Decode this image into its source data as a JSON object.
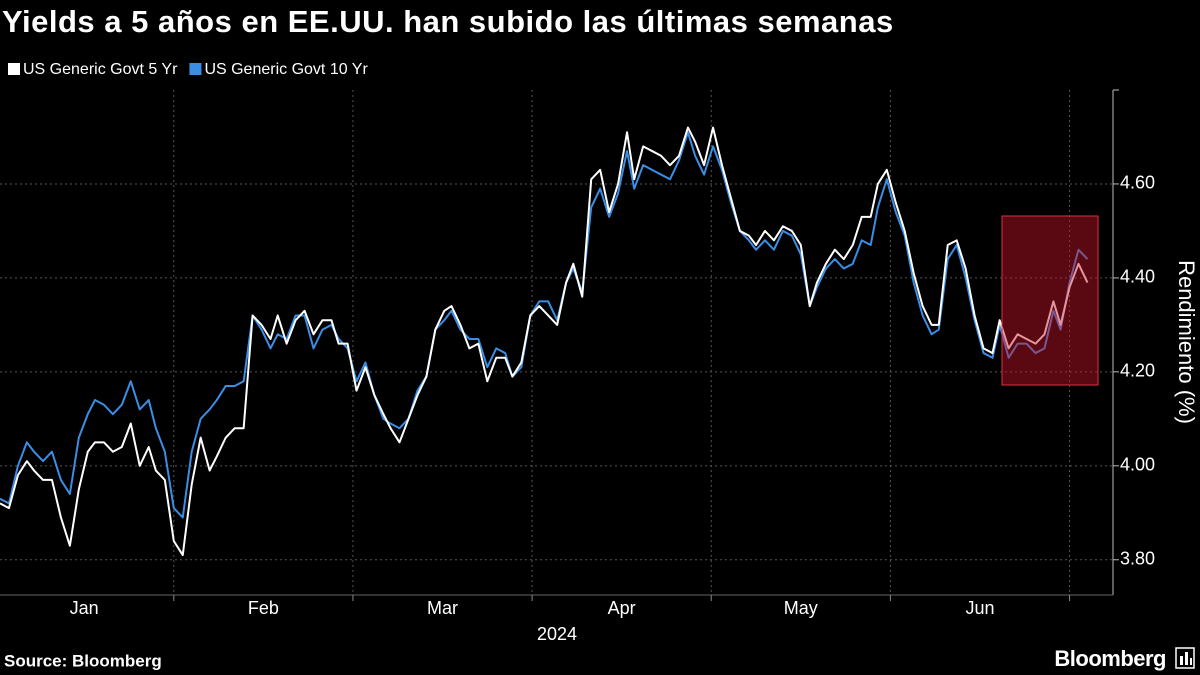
{
  "chart_data": {
    "type": "line",
    "title": "Yields a 5 años en EE.UU. han subido las últimas semanas",
    "y_label": "Rendimiento (%)",
    "x_label": "2024",
    "source": "Source: Bloomberg",
    "brand": "Bloomberg",
    "xlim": [
      1.03,
      7.17
    ],
    "ylim": [
      3.725,
      4.8
    ],
    "xticks": [
      {
        "value": 1.5,
        "label": "Jan"
      },
      {
        "value": 2.5,
        "label": "Feb"
      },
      {
        "value": 3.5,
        "label": "Mar"
      },
      {
        "value": 4.5,
        "label": "Apr"
      },
      {
        "value": 5.5,
        "label": "May"
      },
      {
        "value": 6.5,
        "label": "Jun"
      }
    ],
    "xgrid": [
      2,
      3,
      4,
      5,
      6,
      7
    ],
    "yticks": [
      {
        "value": 3.8,
        "label": "3.80"
      },
      {
        "value": 4.0,
        "label": "4.00"
      },
      {
        "value": 4.2,
        "label": "4.20"
      },
      {
        "value": 4.4,
        "label": "4.40"
      },
      {
        "value": 4.6,
        "label": "4.60"
      }
    ],
    "grid": true,
    "legend": "top-left",
    "x": [
      1.03,
      1.08,
      1.13,
      1.18,
      1.22,
      1.27,
      1.32,
      1.37,
      1.42,
      1.47,
      1.52,
      1.56,
      1.61,
      1.66,
      1.71,
      1.76,
      1.81,
      1.86,
      1.9,
      1.95,
      2.0,
      2.05,
      2.1,
      2.15,
      2.2,
      2.24,
      2.29,
      2.34,
      2.39,
      2.44,
      2.49,
      2.54,
      2.58,
      2.63,
      2.68,
      2.73,
      2.78,
      2.83,
      2.88,
      2.92,
      2.97,
      3.02,
      3.07,
      3.12,
      3.17,
      3.21,
      3.26,
      3.31,
      3.36,
      3.41,
      3.46,
      3.51,
      3.55,
      3.6,
      3.65,
      3.7,
      3.75,
      3.8,
      3.85,
      3.89,
      3.94,
      3.99,
      4.04,
      4.09,
      4.14,
      4.19,
      4.23,
      4.28,
      4.33,
      4.38,
      4.43,
      4.48,
      4.53,
      4.57,
      4.62,
      4.67,
      4.72,
      4.77,
      4.82,
      4.87,
      4.91,
      4.96,
      5.01,
      5.06,
      5.11,
      5.16,
      5.21,
      5.25,
      5.3,
      5.35,
      5.4,
      5.45,
      5.5,
      5.55,
      5.59,
      5.64,
      5.69,
      5.74,
      5.79,
      5.84,
      5.89,
      5.93,
      5.98,
      6.03,
      6.08,
      6.13,
      6.18,
      6.23,
      6.27,
      6.32,
      6.37,
      6.42,
      6.47,
      6.52,
      6.57,
      6.61,
      6.66,
      6.71,
      6.76,
      6.81,
      6.86,
      6.91,
      6.95,
      7.0,
      7.05,
      7.1
    ],
    "series": [
      {
        "name": "US Generic Govt 5 Yr",
        "color": "#ffffff",
        "values": [
          3.92,
          3.91,
          3.98,
          4.01,
          3.99,
          3.97,
          3.97,
          3.89,
          3.83,
          3.95,
          4.03,
          4.05,
          4.05,
          4.03,
          4.04,
          4.09,
          4.0,
          4.04,
          3.99,
          3.97,
          3.84,
          3.81,
          3.96,
          4.06,
          3.99,
          4.02,
          4.06,
          4.08,
          4.08,
          4.32,
          4.3,
          4.27,
          4.32,
          4.26,
          4.31,
          4.33,
          4.28,
          4.31,
          4.31,
          4.26,
          4.26,
          4.16,
          4.21,
          4.15,
          4.11,
          4.08,
          4.05,
          4.1,
          4.15,
          4.19,
          4.29,
          4.33,
          4.34,
          4.3,
          4.25,
          4.26,
          4.18,
          4.23,
          4.23,
          4.19,
          4.22,
          4.32,
          4.34,
          4.32,
          4.3,
          4.39,
          4.43,
          4.36,
          4.61,
          4.63,
          4.54,
          4.6,
          4.71,
          4.61,
          4.68,
          4.67,
          4.66,
          4.64,
          4.66,
          4.72,
          4.69,
          4.64,
          4.72,
          4.64,
          4.57,
          4.5,
          4.49,
          4.47,
          4.5,
          4.48,
          4.51,
          4.5,
          4.47,
          4.34,
          4.39,
          4.43,
          4.46,
          4.44,
          4.47,
          4.53,
          4.53,
          4.6,
          4.63,
          4.56,
          4.5,
          4.41,
          4.34,
          4.3,
          4.3,
          4.47,
          4.48,
          4.42,
          4.32,
          4.25,
          4.24,
          4.31,
          4.25,
          4.28,
          4.27,
          4.26,
          4.28,
          4.35,
          4.3,
          4.38,
          4.43,
          4.39
        ]
      },
      {
        "name": "US Generic Govt 10 Yr",
        "color": "#3a8ee6",
        "values": [
          3.93,
          3.92,
          4.0,
          4.05,
          4.03,
          4.01,
          4.03,
          3.97,
          3.94,
          4.06,
          4.11,
          4.14,
          4.13,
          4.11,
          4.13,
          4.18,
          4.12,
          4.14,
          4.08,
          4.03,
          3.91,
          3.89,
          4.03,
          4.1,
          4.12,
          4.14,
          4.17,
          4.17,
          4.18,
          4.32,
          4.29,
          4.25,
          4.28,
          4.27,
          4.32,
          4.32,
          4.25,
          4.29,
          4.3,
          4.27,
          4.25,
          4.18,
          4.22,
          4.15,
          4.1,
          4.09,
          4.08,
          4.1,
          4.16,
          4.19,
          4.29,
          4.31,
          4.33,
          4.29,
          4.27,
          4.27,
          4.21,
          4.25,
          4.24,
          4.19,
          4.21,
          4.32,
          4.35,
          4.35,
          4.31,
          4.39,
          4.42,
          4.37,
          4.55,
          4.59,
          4.53,
          4.58,
          4.67,
          4.59,
          4.64,
          4.63,
          4.62,
          4.61,
          4.65,
          4.71,
          4.66,
          4.62,
          4.68,
          4.63,
          4.56,
          4.5,
          4.48,
          4.46,
          4.48,
          4.46,
          4.5,
          4.49,
          4.45,
          4.34,
          4.38,
          4.42,
          4.44,
          4.42,
          4.43,
          4.48,
          4.47,
          4.55,
          4.61,
          4.54,
          4.49,
          4.39,
          4.32,
          4.28,
          4.29,
          4.44,
          4.47,
          4.4,
          4.31,
          4.24,
          4.23,
          4.3,
          4.23,
          4.26,
          4.26,
          4.24,
          4.25,
          4.33,
          4.29,
          4.39,
          4.46,
          4.44
        ]
      }
    ]
  }
}
